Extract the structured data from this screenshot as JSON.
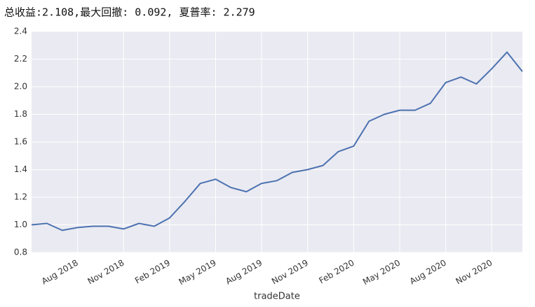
{
  "chart_data": {
    "type": "line",
    "title": "总收益:2.108,最大回撤: 0.092, 夏普率: 2.279",
    "xlabel": "tradeDate",
    "x": [
      "2018-05",
      "2018-06",
      "2018-07",
      "2018-08",
      "2018-09",
      "2018-10",
      "2018-11",
      "2018-12",
      "2019-01",
      "2019-02",
      "2019-03",
      "2019-04",
      "2019-05",
      "2019-06",
      "2019-07",
      "2019-08",
      "2019-09",
      "2019-10",
      "2019-11",
      "2019-12",
      "2020-01",
      "2020-02",
      "2020-03",
      "2020-04",
      "2020-05",
      "2020-06",
      "2020-07",
      "2020-08",
      "2020-09",
      "2020-10",
      "2020-11",
      "2020-12",
      "2021-01"
    ],
    "values": [
      1.0,
      1.01,
      0.96,
      0.98,
      0.99,
      0.99,
      0.97,
      1.01,
      0.99,
      1.05,
      1.17,
      1.3,
      1.33,
      1.27,
      1.24,
      1.3,
      1.32,
      1.38,
      1.4,
      1.43,
      1.53,
      1.57,
      1.75,
      1.8,
      1.83,
      1.83,
      1.88,
      2.03,
      2.07,
      2.02,
      2.13,
      2.25,
      2.11
    ],
    "color": "#4c72b0",
    "xlim": [
      "2018-05",
      "2021-01"
    ],
    "xticks": [
      {
        "value": "2018-08",
        "label": "Aug 2018"
      },
      {
        "value": "2018-11",
        "label": "Nov 2018"
      },
      {
        "value": "2019-02",
        "label": "Feb 2019"
      },
      {
        "value": "2019-05",
        "label": "May 2019"
      },
      {
        "value": "2019-08",
        "label": "Aug 2019"
      },
      {
        "value": "2019-11",
        "label": "Nov 2019"
      },
      {
        "value": "2020-02",
        "label": "Feb 2020"
      },
      {
        "value": "2020-05",
        "label": "May 2020"
      },
      {
        "value": "2020-08",
        "label": "Aug 2020"
      },
      {
        "value": "2020-11",
        "label": "Nov 2020"
      }
    ],
    "ylim": [
      0.8,
      2.4
    ],
    "yticks": [
      0.8,
      {
        "value": 1,
        "label": "1.0"
      },
      1.2,
      1.4,
      1.6,
      1.8,
      {
        "value": 2,
        "label": "2.0"
      },
      2.2,
      2.4
    ],
    "grid": true,
    "background": "#eaeaf2"
  }
}
